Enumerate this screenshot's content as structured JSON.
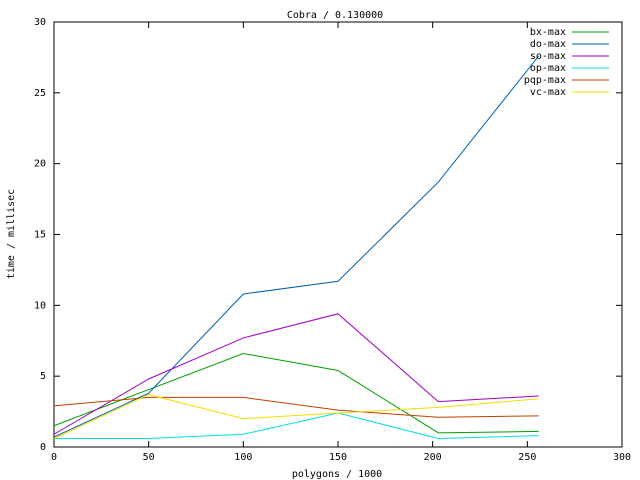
{
  "chart_data": {
    "type": "line",
    "title": "Cobra / 0.130000",
    "xlabel": "polygons / 1000",
    "ylabel": "time / millisec",
    "xlim": [
      0,
      300
    ],
    "ylim": [
      0,
      30
    ],
    "xticks": [
      0,
      50,
      100,
      150,
      200,
      250,
      300
    ],
    "yticks": [
      0,
      5,
      10,
      15,
      20,
      25,
      30
    ],
    "grid": false,
    "legend_position": "top-right",
    "series": [
      {
        "name": "bx-max",
        "color": "#00a000",
        "x": [
          0,
          45,
          100,
          150,
          203,
          256
        ],
        "y": [
          1.5,
          3.8,
          6.6,
          5.4,
          1.0,
          1.1
        ]
      },
      {
        "name": "do-max",
        "color": "#0060ad",
        "x": [
          0,
          50,
          100,
          150,
          203,
          256
        ],
        "y": [
          0.7,
          3.8,
          10.8,
          11.7,
          18.7,
          27.6
        ]
      },
      {
        "name": "so-max",
        "color": "#a000c0",
        "x": [
          0,
          50,
          100,
          150,
          203,
          256
        ],
        "y": [
          0.9,
          4.8,
          7.7,
          9.4,
          3.2,
          3.6
        ]
      },
      {
        "name": "op-max",
        "color": "#00e0e0",
        "x": [
          0,
          50,
          100,
          150,
          203,
          256
        ],
        "y": [
          0.6,
          0.6,
          0.9,
          2.4,
          0.6,
          0.8
        ]
      },
      {
        "name": "pqp-max",
        "color": "#c04000",
        "x": [
          0,
          50,
          100,
          150,
          203,
          256
        ],
        "y": [
          2.9,
          3.5,
          3.5,
          2.6,
          2.1,
          2.2
        ]
      },
      {
        "name": "vc-max",
        "color": "#f0e000",
        "x": [
          0,
          50,
          100,
          150,
          203,
          256
        ],
        "y": [
          0.6,
          3.7,
          2.0,
          2.4,
          2.8,
          3.4
        ]
      }
    ]
  }
}
